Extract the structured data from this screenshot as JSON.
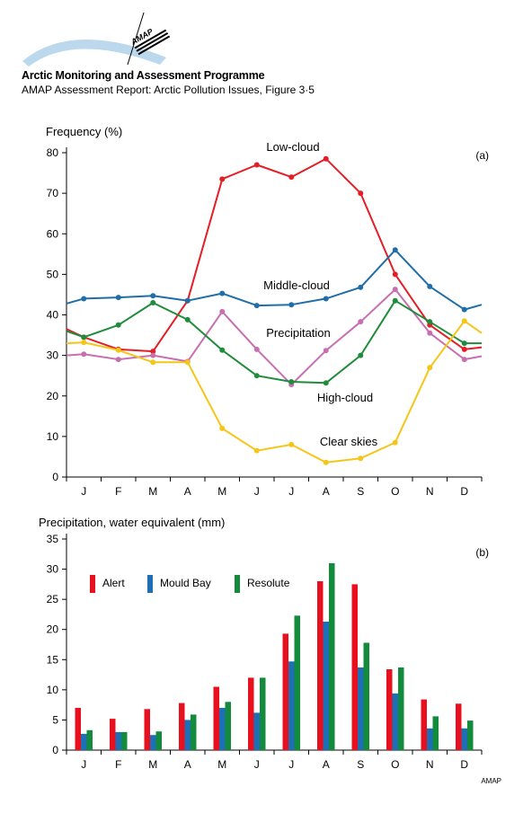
{
  "header": {
    "logo_text": "AMAP",
    "org_title": "Arctic Monitoring and Assessment Programme",
    "report_line": "AMAP Assessment Report: Arctic Pollution Issues, Figure 3·5"
  },
  "footer": {
    "credit": "AMAP"
  },
  "chart_data": [
    {
      "id": "a",
      "type": "line",
      "panel_label": "(a)",
      "title": "",
      "ylabel": "Frequency (%)",
      "xlabel": "",
      "ylim": [
        0,
        80
      ],
      "yticks": [
        0,
        10,
        20,
        30,
        40,
        50,
        60,
        70,
        80
      ],
      "categories": [
        "J",
        "F",
        "M",
        "A",
        "M",
        "J",
        "J",
        "A",
        "S",
        "O",
        "N",
        "D"
      ],
      "grid": false,
      "series": [
        {
          "name": "Low-cloud",
          "color": "#e41e26",
          "values": [
            34.5,
            31.5,
            31,
            43.5,
            73.5,
            77,
            74,
            78.5,
            70,
            50,
            37.5,
            31.5
          ],
          "start": 36.5,
          "end": 32
        },
        {
          "name": "Middle-cloud",
          "color": "#1f6ea8",
          "values": [
            44,
            44.3,
            44.7,
            43.5,
            45.3,
            42.3,
            42.5,
            44,
            46.8,
            56,
            47,
            41.3
          ],
          "start": 42.8,
          "end": 42.5
        },
        {
          "name": "Precipitation",
          "color": "#c86fb0",
          "values": [
            30.3,
            29,
            30,
            28.5,
            40.8,
            31.5,
            22.8,
            31.2,
            38.3,
            46.3,
            35.5,
            29
          ],
          "start": 30,
          "end": 29.8
        },
        {
          "name": "High-cloud",
          "color": "#1f8c3b",
          "values": [
            34.5,
            37.5,
            43,
            38.8,
            31.3,
            25,
            23.5,
            23.2,
            30,
            43.5,
            38.3,
            33
          ],
          "start": 36,
          "end": 33
        },
        {
          "name": "Clear skies",
          "color": "#f5c518",
          "values": [
            33.2,
            31.3,
            28.3,
            28.3,
            12,
            6.5,
            8,
            3.6,
            4.6,
            8.5,
            27,
            38.5
          ],
          "start": 33,
          "end": 35.5
        }
      ]
    },
    {
      "id": "b",
      "type": "bar",
      "panel_label": "(b)",
      "title": "",
      "ylabel": "Precipitation, water equivalent (mm)",
      "xlabel": "",
      "ylim": [
        0,
        35
      ],
      "yticks": [
        0,
        5,
        10,
        15,
        20,
        25,
        30,
        35
      ],
      "categories": [
        "J",
        "F",
        "M",
        "A",
        "M",
        "J",
        "J",
        "A",
        "S",
        "O",
        "N",
        "D"
      ],
      "legend_position": "top-left",
      "grid": false,
      "series": [
        {
          "name": "Alert",
          "color": "#e8101e",
          "values": [
            7,
            5.2,
            6.8,
            7.8,
            10.5,
            12,
            19.3,
            28,
            27.5,
            13.4,
            8.4,
            7.7
          ]
        },
        {
          "name": "Mould Bay",
          "color": "#1e6fb5",
          "values": [
            2.7,
            3,
            2.5,
            5,
            7,
            6.2,
            14.7,
            21.3,
            13.7,
            9.4,
            3.6,
            3.6
          ]
        },
        {
          "name": "Resolute",
          "color": "#138b3c",
          "values": [
            3.3,
            3,
            3.1,
            5.9,
            8,
            12,
            22.3,
            31,
            17.8,
            13.7,
            5.6,
            4.9
          ]
        }
      ]
    }
  ]
}
